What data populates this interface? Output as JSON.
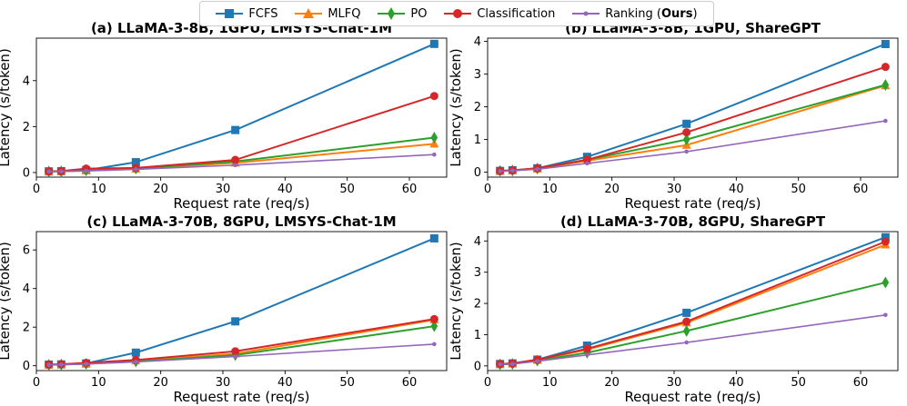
{
  "colors": {
    "FCFS": "#1f77b4",
    "MLFQ": "#ff7f0e",
    "PO": "#2ca02c",
    "Classification": "#d62728",
    "Ranking": "#9467bd"
  },
  "legend": {
    "items": [
      {
        "key": "FCFS",
        "label": "FCFS",
        "marker": "square"
      },
      {
        "key": "MLFQ",
        "label": "MLFQ",
        "marker": "triangle"
      },
      {
        "key": "PO",
        "label": "PO",
        "marker": "diamond"
      },
      {
        "key": "Classification",
        "label": "Classification",
        "marker": "circle"
      },
      {
        "key": "Ranking",
        "label": "Ranking (",
        "label_bold": "Ours",
        "label_suffix": ")",
        "marker": "dot"
      }
    ]
  },
  "chart_data": [
    {
      "type": "line",
      "title": "(a) LLaMA-3-8B, 1GPU, LMSYS-Chat-1M",
      "xlabel": "Request rate (req/s)",
      "ylabel": "Latency (s/token)",
      "xlim": [
        0,
        66
      ],
      "ylim": [
        -0.2,
        5.85
      ],
      "xticks": [
        0,
        10,
        20,
        30,
        40,
        50,
        60
      ],
      "yticks": [
        0,
        2,
        4
      ],
      "x": [
        2,
        4,
        8,
        16,
        32,
        64
      ],
      "series": [
        {
          "name": "FCFS",
          "values": [
            0.05,
            0.06,
            0.1,
            0.45,
            1.85,
            5.6
          ]
        },
        {
          "name": "MLFQ",
          "values": [
            0.04,
            0.05,
            0.08,
            0.15,
            0.42,
            1.25
          ]
        },
        {
          "name": "PO",
          "values": [
            0.04,
            0.05,
            0.09,
            0.17,
            0.48,
            1.52
          ]
        },
        {
          "name": "Classification",
          "values": [
            0.05,
            0.06,
            0.17,
            0.2,
            0.55,
            3.33
          ]
        },
        {
          "name": "Ranking",
          "values": [
            0.04,
            0.05,
            0.07,
            0.14,
            0.32,
            0.78
          ]
        }
      ]
    },
    {
      "type": "line",
      "title": "(b) LLaMA-3-8B, 1GPU, ShareGPT",
      "xlabel": "Request rate (req/s)",
      "ylabel": "Latency (s/token)",
      "xlim": [
        0,
        66
      ],
      "ylim": [
        -0.15,
        4.1
      ],
      "xticks": [
        0,
        10,
        20,
        30,
        40,
        50,
        60
      ],
      "yticks": [
        0,
        1,
        2,
        3,
        4
      ],
      "x": [
        2,
        4,
        8,
        16,
        32,
        64
      ],
      "series": [
        {
          "name": "FCFS",
          "values": [
            0.04,
            0.06,
            0.12,
            0.47,
            1.48,
            3.92
          ]
        },
        {
          "name": "MLFQ",
          "values": [
            0.03,
            0.05,
            0.1,
            0.35,
            0.83,
            2.65
          ]
        },
        {
          "name": "PO",
          "values": [
            0.04,
            0.05,
            0.11,
            0.38,
            1.0,
            2.67
          ]
        },
        {
          "name": "Classification",
          "values": [
            0.04,
            0.06,
            0.12,
            0.38,
            1.22,
            3.22
          ]
        },
        {
          "name": "Ranking",
          "values": [
            0.03,
            0.05,
            0.09,
            0.27,
            0.63,
            1.57
          ]
        }
      ]
    },
    {
      "type": "line",
      "title": "(c) LLaMA-3-70B, 8GPU, LMSYS-Chat-1M",
      "xlabel": "Request rate (req/s)",
      "ylabel": "Latency (s/token)",
      "xlim": [
        0,
        66
      ],
      "ylim": [
        -0.25,
        6.95
      ],
      "xticks": [
        0,
        10,
        20,
        30,
        40,
        50,
        60
      ],
      "yticks": [
        0,
        2,
        4,
        6
      ],
      "x": [
        2,
        4,
        8,
        16,
        32,
        64
      ],
      "series": [
        {
          "name": "FCFS",
          "values": [
            0.06,
            0.07,
            0.12,
            0.68,
            2.3,
            6.6
          ]
        },
        {
          "name": "MLFQ",
          "values": [
            0.05,
            0.06,
            0.1,
            0.26,
            0.62,
            2.38
          ]
        },
        {
          "name": "PO",
          "values": [
            0.05,
            0.06,
            0.1,
            0.22,
            0.55,
            2.05
          ]
        },
        {
          "name": "Classification",
          "values": [
            0.06,
            0.08,
            0.15,
            0.3,
            0.75,
            2.42
          ]
        },
        {
          "name": "Ranking",
          "values": [
            0.05,
            0.06,
            0.09,
            0.2,
            0.48,
            1.12
          ]
        }
      ]
    },
    {
      "type": "line",
      "title": "(d) LLaMA-3-70B, 8GPU, ShareGPT",
      "xlabel": "Request rate (req/s)",
      "ylabel": "Latency (s/token)",
      "xlim": [
        0,
        66
      ],
      "ylim": [
        -0.15,
        4.3
      ],
      "xticks": [
        0,
        10,
        20,
        30,
        40,
        50,
        60
      ],
      "yticks": [
        0,
        1,
        2,
        3,
        4
      ],
      "x": [
        2,
        4,
        8,
        16,
        32,
        64
      ],
      "series": [
        {
          "name": "FCFS",
          "values": [
            0.06,
            0.08,
            0.2,
            0.65,
            1.7,
            4.12
          ]
        },
        {
          "name": "MLFQ",
          "values": [
            0.05,
            0.07,
            0.18,
            0.52,
            1.38,
            3.88
          ]
        },
        {
          "name": "PO",
          "values": [
            0.05,
            0.06,
            0.17,
            0.42,
            1.12,
            2.67
          ]
        },
        {
          "name": "Classification",
          "values": [
            0.06,
            0.08,
            0.2,
            0.55,
            1.42,
            3.98
          ]
        },
        {
          "name": "Ranking",
          "values": [
            0.05,
            0.06,
            0.15,
            0.35,
            0.75,
            1.63
          ]
        }
      ]
    }
  ]
}
